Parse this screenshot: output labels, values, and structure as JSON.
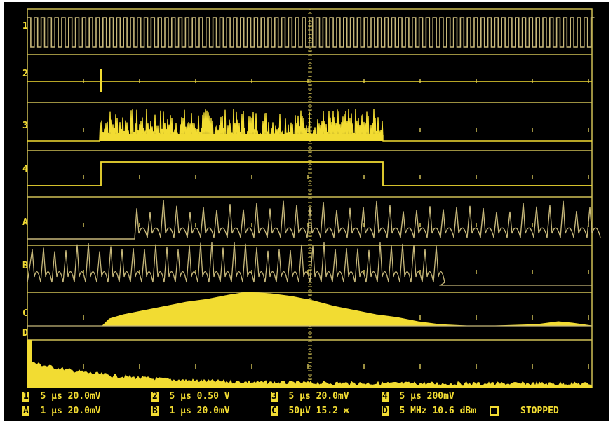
{
  "colors": {
    "background": "#000000",
    "grid": "#cfbf55",
    "trace": "#f2dc32",
    "trace_dim": "#c7b87a"
  },
  "channels": [
    {
      "id": "ch1",
      "label": "1"
    },
    {
      "id": "ch2",
      "label": "2"
    },
    {
      "id": "ch3",
      "label": "3"
    },
    {
      "id": "ch4",
      "label": "4"
    },
    {
      "id": "mathA",
      "label": "A"
    },
    {
      "id": "mathB",
      "label": "B"
    },
    {
      "id": "mathC",
      "label": "C"
    },
    {
      "id": "mathD",
      "label": "D"
    }
  ],
  "status_bar": {
    "row1": [
      {
        "badge": "1",
        "text": "5 µs 20.0mV"
      },
      {
        "badge": "2",
        "text": "5 µs 0.50 V"
      },
      {
        "badge": "3",
        "text": "5 µs 20.0mV"
      },
      {
        "badge": "4",
        "text": "5 µs 200mV"
      }
    ],
    "row2": [
      {
        "badge": "A",
        "text": "1 µs 20.0mV"
      },
      {
        "badge": "B",
        "text": "1 µs 20.0mV"
      },
      {
        "badge": "C",
        "text": "50µV 15.2 ж"
      },
      {
        "badge": "D",
        "text": "5 MHz 10.6 dBm"
      }
    ],
    "state": "STOPPED"
  }
}
